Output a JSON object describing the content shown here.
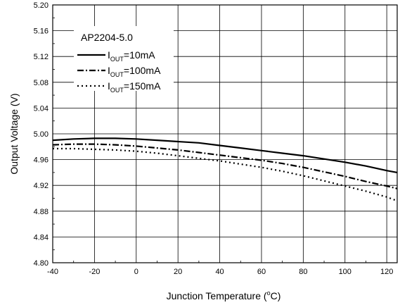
{
  "chart_data": {
    "type": "line",
    "xlabel": {
      "prefix": "Junction Temperature (",
      "sup": "o",
      "suffix": "C)"
    },
    "ylabel": "Output Voltage (V)",
    "xlim": [
      -40,
      125
    ],
    "ylim": [
      4.8,
      5.2
    ],
    "x_ticks": [
      -40,
      -20,
      0,
      20,
      40,
      60,
      80,
      100,
      120
    ],
    "y_ticks": [
      4.8,
      4.84,
      4.88,
      4.92,
      4.96,
      5.0,
      5.04,
      5.08,
      5.12,
      5.16,
      5.2
    ],
    "x_tick_labels": [
      "-40",
      "-20",
      "0",
      "20",
      "40",
      "60",
      "80",
      "100",
      "120"
    ],
    "y_tick_labels": [
      "4.80",
      "4.84",
      "4.88",
      "4.92",
      "4.96",
      "5.00",
      "5.04",
      "5.08",
      "5.12",
      "5.16",
      "5.20"
    ],
    "grid": true,
    "legend_title": "AP2204-5.0",
    "legend_position": "top-left",
    "series": [
      {
        "name": "IOUT=10mA",
        "label": {
          "main": "I",
          "sub": "OUT",
          "rest": "=10mA"
        },
        "dash": "solid",
        "x": [
          -40,
          -30,
          -20,
          -10,
          0,
          10,
          20,
          30,
          40,
          50,
          60,
          70,
          80,
          90,
          100,
          110,
          120,
          125
        ],
        "y": [
          4.99,
          4.992,
          4.993,
          4.993,
          4.992,
          4.99,
          4.988,
          4.986,
          4.982,
          4.978,
          4.974,
          4.97,
          4.966,
          4.961,
          4.956,
          4.95,
          4.943,
          4.94
        ]
      },
      {
        "name": "IOUT=100mA",
        "label": {
          "main": "I",
          "sub": "OUT",
          "rest": "=100mA"
        },
        "dash": "dashdot",
        "x": [
          -40,
          -30,
          -20,
          -10,
          0,
          10,
          20,
          30,
          40,
          50,
          60,
          70,
          80,
          90,
          100,
          110,
          120,
          125
        ],
        "y": [
          4.983,
          4.984,
          4.984,
          4.983,
          4.981,
          4.978,
          4.975,
          4.971,
          4.967,
          4.963,
          4.959,
          4.954,
          4.948,
          4.941,
          4.934,
          4.926,
          4.919,
          4.915
        ]
      },
      {
        "name": "IOUT=150mA",
        "label": {
          "main": "I",
          "sub": "OUT",
          "rest": "=150mA"
        },
        "dash": "dotted",
        "x": [
          -40,
          -30,
          -20,
          -10,
          0,
          10,
          20,
          30,
          40,
          50,
          60,
          70,
          80,
          90,
          100,
          110,
          120,
          125
        ],
        "y": [
          4.977,
          4.977,
          4.976,
          4.975,
          4.973,
          4.97,
          4.966,
          4.962,
          4.958,
          4.953,
          4.948,
          4.942,
          4.935,
          4.927,
          4.919,
          4.911,
          4.902,
          4.896
        ]
      }
    ]
  }
}
